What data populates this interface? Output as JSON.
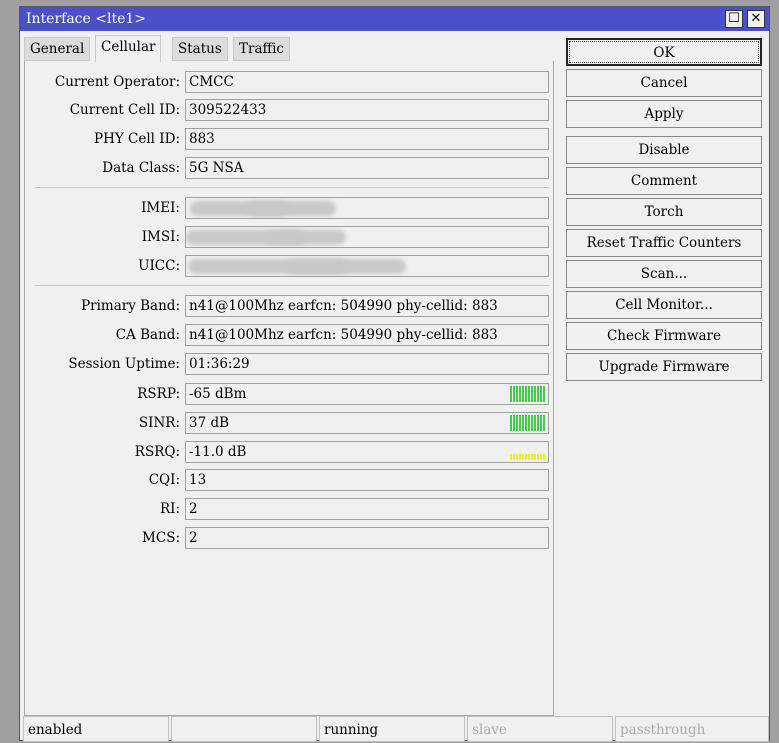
{
  "window": {
    "title": "Interface <lte1>",
    "maximize_icon": "maximize-icon",
    "close_icon": "close-icon"
  },
  "tabs": [
    {
      "label": "General"
    },
    {
      "label": "Cellular",
      "active": true
    },
    {
      "label": "Status"
    },
    {
      "label": "Traffic"
    }
  ],
  "fields": {
    "operator": {
      "label": "Current Operator:",
      "value": "CMCC"
    },
    "cell_id": {
      "label": "Current Cell ID:",
      "value": "309522433"
    },
    "phy_cell_id": {
      "label": "PHY Cell ID:",
      "value": "883"
    },
    "data_class": {
      "label": "Data Class:",
      "value": "5G NSA"
    },
    "imei": {
      "label": "IMEI:",
      "value": ""
    },
    "imsi": {
      "label": "IMSI:",
      "value": ""
    },
    "uicc": {
      "label": "UICC:",
      "value": ""
    },
    "primary_band": {
      "label": "Primary Band:",
      "value": "n41@100Mhz earfcn: 504990 phy-cellid: 883"
    },
    "ca_band": {
      "label": "CA Band:",
      "value": "n41@100Mhz earfcn: 504990 phy-cellid: 883"
    },
    "uptime": {
      "label": "Session Uptime:",
      "value": "01:36:29"
    },
    "rsrp": {
      "label": "RSRP:",
      "value": "-65 dBm",
      "level": 1.0,
      "color": "#44cc44"
    },
    "sinr": {
      "label": "SINR:",
      "value": "37 dB",
      "level": 1.0,
      "color": "#44cc44"
    },
    "rsrq": {
      "label": "RSRQ:",
      "value": "-11.0 dB",
      "level": 1.0,
      "color": "#eeee22"
    },
    "cqi": {
      "label": "CQI:",
      "value": "13"
    },
    "ri": {
      "label": "RI:",
      "value": "2"
    },
    "mcs": {
      "label": "MCS:",
      "value": "2"
    }
  },
  "buttons": [
    "OK",
    "Cancel",
    "Apply",
    "Disable",
    "Comment",
    "Torch",
    "Reset Traffic Counters",
    "Scan...",
    "Cell Monitor...",
    "Check Firmware",
    "Upgrade Firmware"
  ],
  "status_bar": [
    "enabled",
    "",
    "running",
    "slave",
    "passthrough"
  ]
}
